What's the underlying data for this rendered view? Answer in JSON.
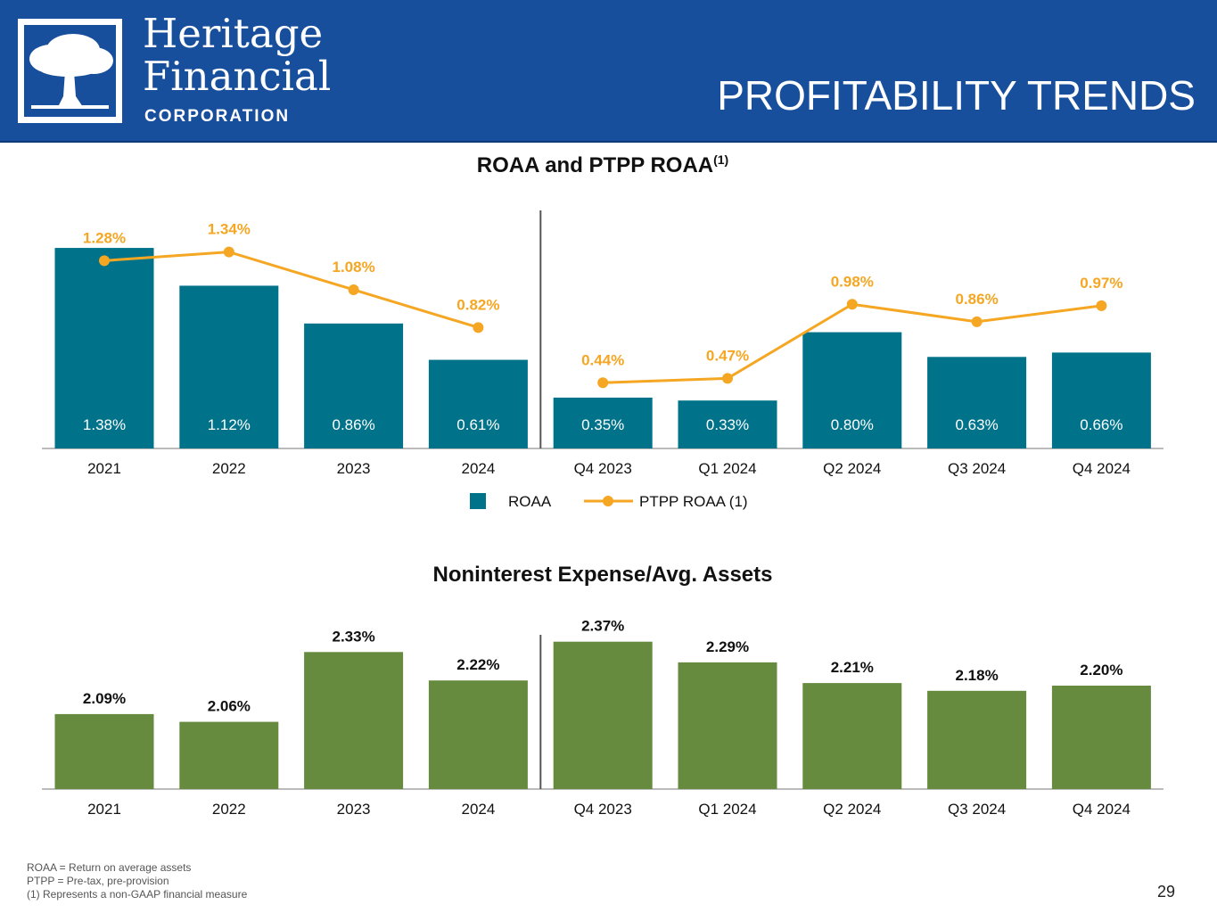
{
  "header": {
    "brand_line1": "Heritage",
    "brand_line2": "Financial",
    "brand_line3": "CORPORATION",
    "page_heading": "PROFITABILITY TRENDS"
  },
  "colors": {
    "header_bg": "#184f9c",
    "roaa_bar": "#00738a",
    "ptpp_line": "#f5a623",
    "expense_bar": "#668b3e"
  },
  "chart_data": [
    {
      "type": "bar",
      "title": "ROAA and PTPP ROAA",
      "title_superscript": "(1)",
      "categories": [
        "2021",
        "2022",
        "2023",
        "2024",
        "Q4 2023",
        "Q1 2024",
        "Q2 2024",
        "Q3 2024",
        "Q4 2024"
      ],
      "series": [
        {
          "name": "ROAA",
          "type": "bar",
          "values": [
            1.38,
            1.12,
            0.86,
            0.61,
            0.35,
            0.33,
            0.8,
            0.63,
            0.66
          ],
          "labels": [
            "1.38%",
            "1.12%",
            "0.86%",
            "0.61%",
            "0.35%",
            "0.33%",
            "0.80%",
            "0.63%",
            "0.66%"
          ]
        },
        {
          "name": "PTPP ROAA (1)",
          "type": "line",
          "values": [
            1.28,
            1.34,
            1.08,
            0.82,
            0.44,
            0.47,
            0.98,
            0.86,
            0.97
          ],
          "labels": [
            "1.28%",
            "1.34%",
            "1.08%",
            "0.82%",
            "0.44%",
            "0.47%",
            "0.98%",
            "0.86%",
            "0.97%"
          ]
        }
      ],
      "legend": [
        "ROAA",
        "PTPP ROAA (1)"
      ],
      "legend_position": "bottom-center",
      "ylim": [
        0,
        1.4
      ],
      "divider_after_index": 3
    },
    {
      "type": "bar",
      "title": "Noninterest Expense/Avg. Assets",
      "categories": [
        "2021",
        "2022",
        "2023",
        "2024",
        "Q4 2023",
        "Q1 2024",
        "Q2 2024",
        "Q3 2024",
        "Q4 2024"
      ],
      "series": [
        {
          "name": "Noninterest Expense/Avg. Assets",
          "values": [
            2.09,
            2.06,
            2.33,
            2.22,
            2.37,
            2.29,
            2.21,
            2.18,
            2.2
          ],
          "labels": [
            "2.09%",
            "2.06%",
            "2.33%",
            "2.22%",
            "2.37%",
            "2.29%",
            "2.21%",
            "2.18%",
            "2.20%"
          ]
        }
      ],
      "ylim": [
        0,
        2.4
      ],
      "divider_after_index": 3
    }
  ],
  "footnotes": [
    "ROAA = Return on average assets",
    "PTPP = Pre-tax, pre-provision",
    "(1) Represents a non-GAAP financial measure"
  ],
  "page_number": "29"
}
